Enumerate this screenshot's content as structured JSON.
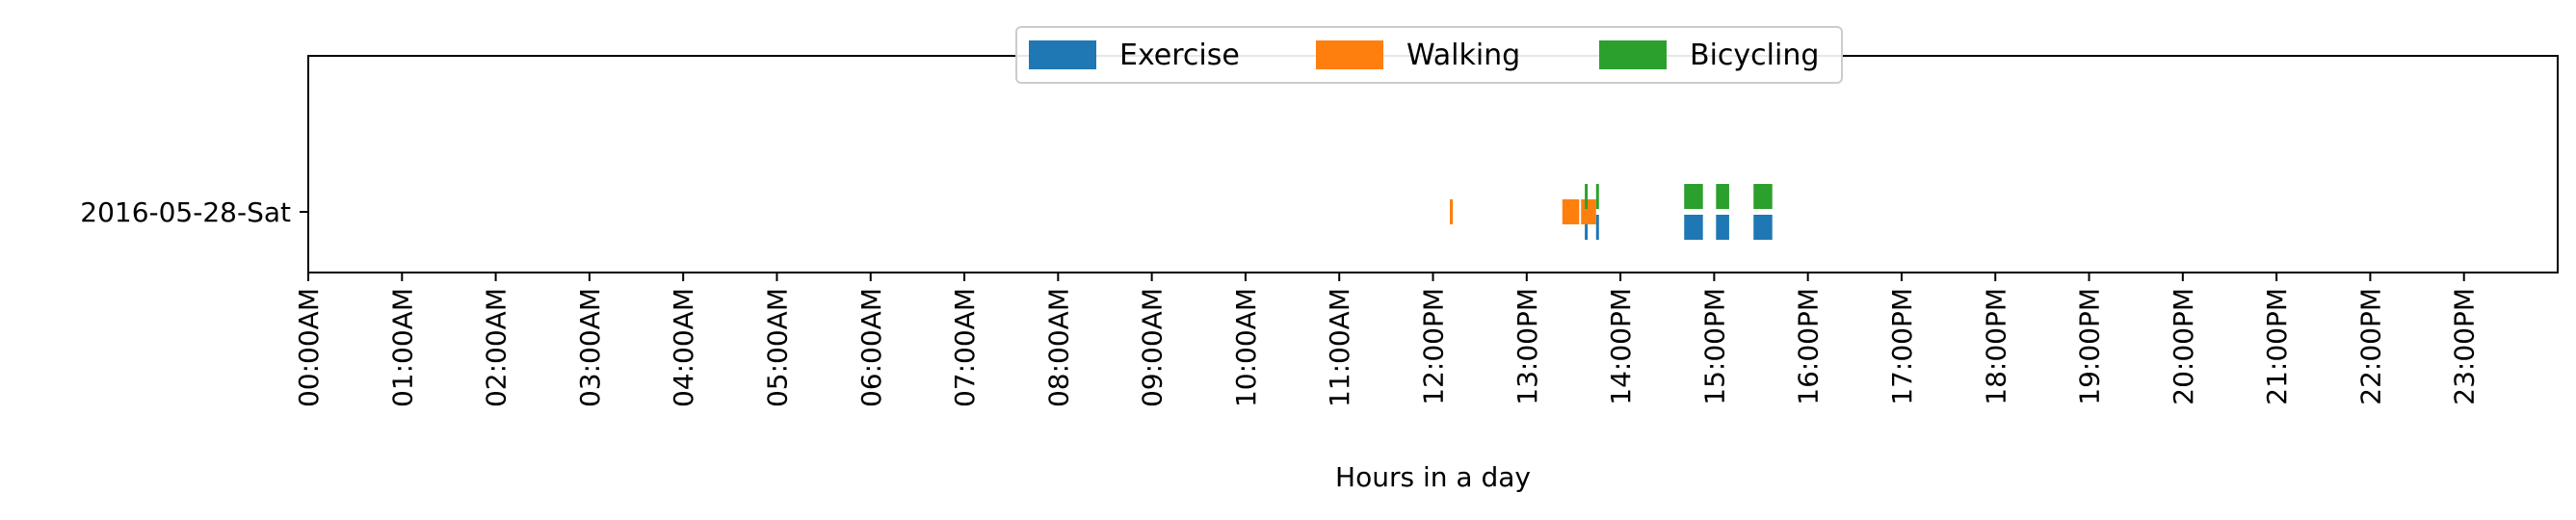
{
  "chart_data": {
    "type": "timeline",
    "title": "",
    "xlabel": "Hours in a day",
    "ylabel": "",
    "xlim": [
      0,
      24
    ],
    "grid": false,
    "legend_placement": "top-center",
    "x_tick_values": [
      0,
      1,
      2,
      3,
      4,
      5,
      6,
      7,
      8,
      9,
      10,
      11,
      12,
      13,
      14,
      15,
      16,
      17,
      18,
      19,
      20,
      21,
      22,
      23
    ],
    "x_tick_labels": [
      "00:00AM",
      "01:00AM",
      "02:00AM",
      "03:00AM",
      "04:00AM",
      "05:00AM",
      "06:00AM",
      "07:00AM",
      "08:00AM",
      "09:00AM",
      "10:00AM",
      "11:00AM",
      "12:00PM",
      "13:00PM",
      "14:00PM",
      "15:00PM",
      "16:00PM",
      "17:00PM",
      "18:00PM",
      "19:00PM",
      "20:00PM",
      "21:00PM",
      "22:00PM",
      "23:00PM"
    ],
    "categories": [
      "2016-05-28-Sat"
    ],
    "series": [
      {
        "name": "Exercise",
        "color": "#1f77b4",
        "intervals": [
          [
            13.62,
            13.65
          ],
          [
            13.74,
            13.77
          ],
          [
            14.68,
            14.88
          ],
          [
            15.02,
            15.16
          ],
          [
            15.42,
            15.62
          ]
        ]
      },
      {
        "name": "Walking",
        "color": "#ff7f0e",
        "intervals": [
          [
            12.18,
            12.21
          ],
          [
            13.38,
            13.56
          ],
          [
            13.58,
            13.74
          ]
        ]
      },
      {
        "name": "Bicycling",
        "color": "#2ca02c",
        "intervals": [
          [
            13.62,
            13.65
          ],
          [
            13.74,
            13.77
          ],
          [
            14.68,
            14.88
          ],
          [
            15.02,
            15.16
          ],
          [
            15.42,
            15.62
          ]
        ]
      }
    ]
  }
}
